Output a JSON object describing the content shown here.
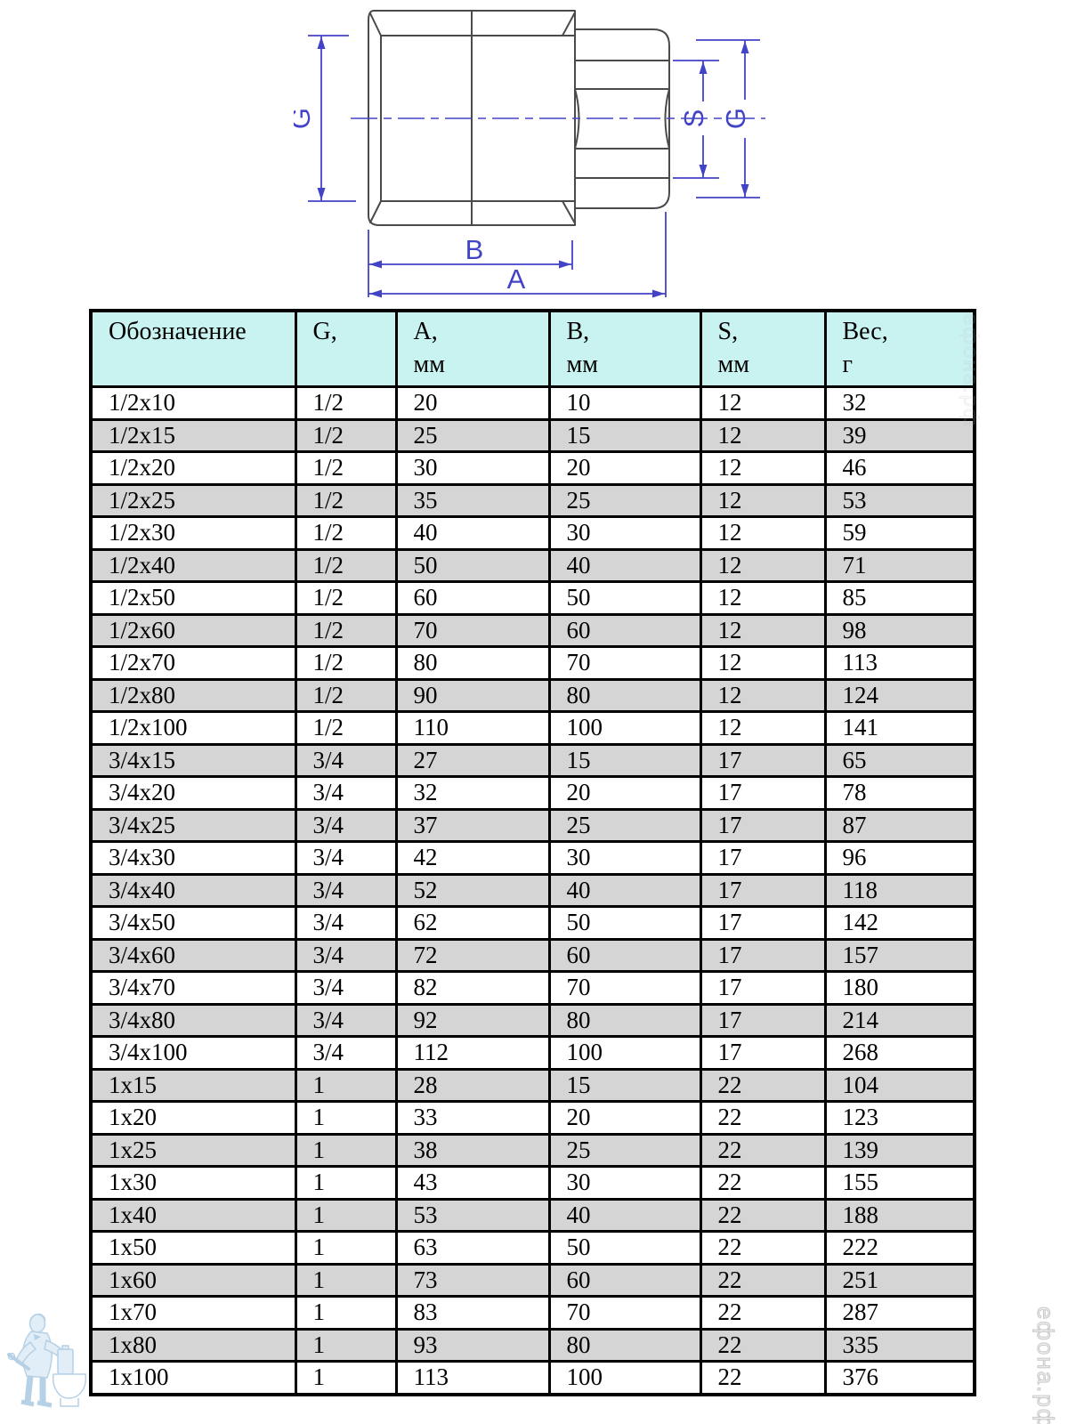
{
  "drawing": {
    "labels": {
      "g_left": "G",
      "s": "S",
      "g_right": "G",
      "b": "B",
      "a": "A"
    },
    "colors": {
      "outline": "#4a4a4a",
      "dimension": "#4343c8"
    }
  },
  "table": {
    "header_bg": "#c9f3f1",
    "row_alt_bg": "#d5d5d5",
    "headers": [
      {
        "line1": "Обозначение",
        "line2": ""
      },
      {
        "line1": "G,",
        "line2": ""
      },
      {
        "line1": "A,",
        "line2": "мм"
      },
      {
        "line1": "B,",
        "line2": "мм"
      },
      {
        "line1": "S,",
        "line2": "мм"
      },
      {
        "line1": "Вес,",
        "line2": "г"
      }
    ],
    "rows": [
      [
        "1/2x10",
        "1/2",
        "20",
        "10",
        "12",
        "32"
      ],
      [
        "1/2x15",
        "1/2",
        "25",
        "15",
        "12",
        "39"
      ],
      [
        "1/2x20",
        "1/2",
        "30",
        "20",
        "12",
        "46"
      ],
      [
        "1/2x25",
        "1/2",
        "35",
        "25",
        "12",
        "53"
      ],
      [
        "1/2x30",
        "1/2",
        "40",
        "30",
        "12",
        "59"
      ],
      [
        "1/2x40",
        "1/2",
        "50",
        "40",
        "12",
        "71"
      ],
      [
        "1/2x50",
        "1/2",
        "60",
        "50",
        "12",
        "85"
      ],
      [
        "1/2x60",
        "1/2",
        "70",
        "60",
        "12",
        "98"
      ],
      [
        "1/2x70",
        "1/2",
        "80",
        "70",
        "12",
        "113"
      ],
      [
        "1/2x80",
        "1/2",
        "90",
        "80",
        "12",
        "124"
      ],
      [
        "1/2x100",
        "1/2",
        "110",
        "100",
        "12",
        "141"
      ],
      [
        "3/4x15",
        "3/4",
        "27",
        "15",
        "17",
        "65"
      ],
      [
        "3/4x20",
        "3/4",
        "32",
        "20",
        "17",
        "78"
      ],
      [
        "3/4x25",
        "3/4",
        "37",
        "25",
        "17",
        "87"
      ],
      [
        "3/4x30",
        "3/4",
        "42",
        "30",
        "17",
        "96"
      ],
      [
        "3/4x40",
        "3/4",
        "52",
        "40",
        "17",
        "118"
      ],
      [
        "3/4x50",
        "3/4",
        "62",
        "50",
        "17",
        "142"
      ],
      [
        "3/4x60",
        "3/4",
        "72",
        "60",
        "17",
        "157"
      ],
      [
        "3/4x70",
        "3/4",
        "82",
        "70",
        "17",
        "180"
      ],
      [
        "3/4x80",
        "3/4",
        "92",
        "80",
        "17",
        "214"
      ],
      [
        "3/4x100",
        "3/4",
        "112",
        "100",
        "17",
        "268"
      ],
      [
        "1x15",
        "1",
        "28",
        "15",
        "22",
        "104"
      ],
      [
        "1x20",
        "1",
        "33",
        "20",
        "22",
        "123"
      ],
      [
        "1x25",
        "1",
        "38",
        "25",
        "22",
        "139"
      ],
      [
        "1x30",
        "1",
        "43",
        "30",
        "22",
        "155"
      ],
      [
        "1x40",
        "1",
        "53",
        "40",
        "22",
        "188"
      ],
      [
        "1x50",
        "1",
        "63",
        "50",
        "22",
        "222"
      ],
      [
        "1x60",
        "1",
        "73",
        "60",
        "22",
        "251"
      ],
      [
        "1x70",
        "1",
        "83",
        "70",
        "22",
        "287"
      ],
      [
        "1x80",
        "1",
        "93",
        "80",
        "22",
        "335"
      ],
      [
        "1x100",
        "1",
        "113",
        "100",
        "22",
        "376"
      ]
    ]
  },
  "watermarks": {
    "site_text": "ефона.рф",
    "logo": "plumber-with-toilet"
  }
}
